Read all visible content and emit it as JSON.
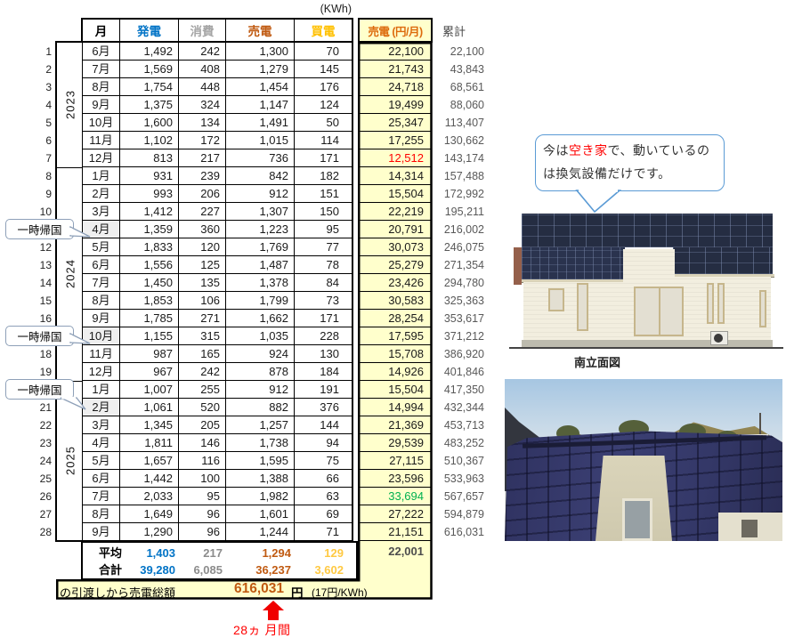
{
  "unit_label": "(KWh)",
  "columns": {
    "month": "月",
    "generation": "発電",
    "consumption": "消費",
    "sell": "売電",
    "buy": "買電",
    "sell_yen": "売電 (円/月)",
    "cumulative": "累計"
  },
  "rows": [
    {
      "no": "1",
      "month": "6月",
      "gen": "1,492",
      "cons": "242",
      "sell": "1,300",
      "buy": "70",
      "yen": "22,100",
      "cum": "22,100"
    },
    {
      "no": "2",
      "month": "7月",
      "gen": "1,569",
      "cons": "408",
      "sell": "1,279",
      "buy": "145",
      "yen": "21,743",
      "cum": "43,843"
    },
    {
      "no": "3",
      "month": "8月",
      "gen": "1,754",
      "cons": "448",
      "sell": "1,454",
      "buy": "176",
      "yen": "24,718",
      "cum": "68,561"
    },
    {
      "no": "4",
      "month": "9月",
      "gen": "1,375",
      "cons": "324",
      "sell": "1,147",
      "buy": "124",
      "yen": "19,499",
      "cum": "88,060"
    },
    {
      "no": "5",
      "month": "10月",
      "gen": "1,600",
      "cons": "134",
      "sell": "1,491",
      "buy": "50",
      "yen": "25,347",
      "cum": "113,407"
    },
    {
      "no": "6",
      "month": "11月",
      "gen": "1,102",
      "cons": "172",
      "sell": "1,015",
      "buy": "114",
      "yen": "17,255",
      "cum": "130,662"
    },
    {
      "no": "7",
      "month": "12月",
      "gen": "813",
      "cons": "217",
      "sell": "736",
      "buy": "171",
      "yen": "12,512",
      "cum": "143,174",
      "yen_color": "#FF0000"
    },
    {
      "no": "8",
      "month": "1月",
      "gen": "931",
      "cons": "239",
      "sell": "842",
      "buy": "182",
      "yen": "14,314",
      "cum": "157,488"
    },
    {
      "no": "9",
      "month": "2月",
      "gen": "993",
      "cons": "206",
      "sell": "912",
      "buy": "151",
      "yen": "15,504",
      "cum": "172,992"
    },
    {
      "no": "10",
      "month": "3月",
      "gen": "1,412",
      "cons": "227",
      "sell": "1,307",
      "buy": "150",
      "yen": "22,219",
      "cum": "195,211"
    },
    {
      "no": "11",
      "month": "4月",
      "gen": "1,359",
      "cons": "360",
      "sell": "1,223",
      "buy": "95",
      "yen": "20,791",
      "cum": "216,002",
      "gray": true
    },
    {
      "no": "12",
      "month": "5月",
      "gen": "1,833",
      "cons": "120",
      "sell": "1,769",
      "buy": "77",
      "yen": "30,073",
      "cum": "246,075"
    },
    {
      "no": "13",
      "month": "6月",
      "gen": "1,556",
      "cons": "125",
      "sell": "1,487",
      "buy": "78",
      "yen": "25,279",
      "cum": "271,354"
    },
    {
      "no": "14",
      "month": "7月",
      "gen": "1,450",
      "cons": "135",
      "sell": "1,378",
      "buy": "84",
      "yen": "23,426",
      "cum": "294,780"
    },
    {
      "no": "15",
      "month": "8月",
      "gen": "1,853",
      "cons": "106",
      "sell": "1,799",
      "buy": "73",
      "yen": "30,583",
      "cum": "325,363"
    },
    {
      "no": "16",
      "month": "9月",
      "gen": "1,785",
      "cons": "271",
      "sell": "1,662",
      "buy": "171",
      "yen": "28,254",
      "cum": "353,617"
    },
    {
      "no": "17",
      "month": "10月",
      "gen": "1,155",
      "cons": "315",
      "sell": "1,035",
      "buy": "228",
      "yen": "17,595",
      "cum": "371,212",
      "gray": true
    },
    {
      "no": "18",
      "month": "11月",
      "gen": "987",
      "cons": "165",
      "sell": "924",
      "buy": "130",
      "yen": "15,708",
      "cum": "386,920"
    },
    {
      "no": "19",
      "month": "12月",
      "gen": "967",
      "cons": "242",
      "sell": "878",
      "buy": "184",
      "yen": "14,926",
      "cum": "401,846"
    },
    {
      "no": "20",
      "month": "1月",
      "gen": "1,007",
      "cons": "255",
      "sell": "912",
      "buy": "191",
      "yen": "15,504",
      "cum": "417,350"
    },
    {
      "no": "21",
      "month": "2月",
      "gen": "1,061",
      "cons": "520",
      "sell": "882",
      "buy": "376",
      "yen": "14,994",
      "cum": "432,344",
      "gray": true
    },
    {
      "no": "22",
      "month": "3月",
      "gen": "1,345",
      "cons": "205",
      "sell": "1,257",
      "buy": "144",
      "yen": "21,369",
      "cum": "453,713"
    },
    {
      "no": "23",
      "month": "4月",
      "gen": "1,811",
      "cons": "146",
      "sell": "1,738",
      "buy": "94",
      "yen": "29,539",
      "cum": "483,252"
    },
    {
      "no": "24",
      "month": "5月",
      "gen": "1,657",
      "cons": "116",
      "sell": "1,595",
      "buy": "75",
      "yen": "27,115",
      "cum": "510,367"
    },
    {
      "no": "25",
      "month": "6月",
      "gen": "1,442",
      "cons": "100",
      "sell": "1,388",
      "buy": "66",
      "yen": "23,596",
      "cum": "533,963"
    },
    {
      "no": "26",
      "month": "7月",
      "gen": "2,033",
      "cons": "95",
      "sell": "1,982",
      "buy": "63",
      "yen": "33,694",
      "cum": "567,657",
      "yen_color": "#00B050"
    },
    {
      "no": "27",
      "month": "8月",
      "gen": "1,649",
      "cons": "96",
      "sell": "1,601",
      "buy": "69",
      "yen": "27,222",
      "cum": "594,879"
    },
    {
      "no": "28",
      "month": "9月",
      "gen": "1,290",
      "cons": "96",
      "sell": "1,244",
      "buy": "71",
      "yen": "21,151",
      "cum": "616,031"
    }
  ],
  "year_groups": [
    {
      "label": "2023",
      "from": 1,
      "to": 7
    },
    {
      "label": "2024",
      "from": 8,
      "to": 19
    },
    {
      "label": "2025",
      "from": 20,
      "to": 28
    }
  ],
  "summary": {
    "average_label": "平均",
    "total_label": "合計",
    "average": {
      "gen": "1,403",
      "cons": "217",
      "sell": "1,294",
      "buy": "129",
      "yen": "22,001"
    },
    "total": {
      "gen": "39,280",
      "cons": "6,085",
      "sell": "36,237",
      "buy": "3,602"
    }
  },
  "grand_total": {
    "label": "の引渡しから売電総額",
    "value": "616,031",
    "unit": "円",
    "note": "(17円/KWh)"
  },
  "arrow_label": "28ヵ 月間",
  "callouts": [
    {
      "label": "一時帰国",
      "at_row": 11,
      "tail": "right"
    },
    {
      "label": "一時帰国",
      "at_row": 17,
      "tail": "right"
    },
    {
      "label": "一時帰国",
      "at_row": 20,
      "tail": "down"
    }
  ],
  "speech_bubble": {
    "line1_pre": "今は",
    "line1_highlight": "空き家",
    "line1_post": "で、動いているの",
    "line2": "は換気設備だけです。"
  },
  "elevation_caption": "南立面図",
  "colors": {
    "generation_blue": "#0073C6",
    "consumption_gray": "#A5A5A5",
    "sell_brown": "#C05A11",
    "buy_gold": "#FFC000",
    "sell_yen_header_orange": "#DD6B0D",
    "yellow_background": "#FFFFCC",
    "low_value_red": "#FF0000",
    "high_value_green": "#00B050",
    "cumulative_gray": "#595959",
    "arrow_red": "#FF0000",
    "bubble_border_blue": "#5B9BD5"
  }
}
